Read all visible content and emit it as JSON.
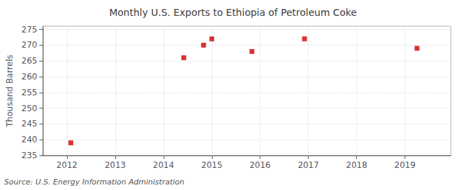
{
  "chart_data": {
    "type": "scatter",
    "title": "Monthly U.S. Exports to Ethiopia of Petroleum Coke",
    "ylabel": "Thousand Barrels",
    "annotation": "Source: U.S. Energy Information Administration",
    "x": [
      2012.08,
      2014.42,
      2014.83,
      2015.0,
      2015.83,
      2016.92,
      2019.25
    ],
    "values": [
      239,
      266,
      270,
      272,
      268,
      272,
      269
    ],
    "color": "#cc0000",
    "marker": "square",
    "xlim": [
      2011.5,
      2019.95
    ],
    "ylim": [
      235,
      276
    ],
    "xticks": [
      2012,
      2013,
      2014,
      2015,
      2016,
      2017,
      2018,
      2019
    ],
    "yticks": [
      235,
      240,
      245,
      250,
      255,
      260,
      265,
      270,
      275
    ],
    "grid": true
  }
}
